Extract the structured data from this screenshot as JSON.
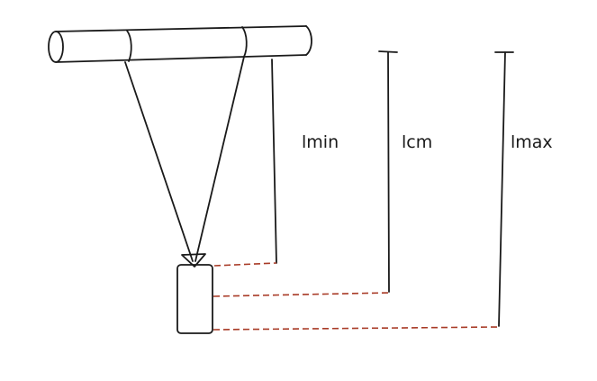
{
  "labels": {
    "lmin": "lmin",
    "lcm": "lcm",
    "lmax": "lmax"
  },
  "colors": {
    "ink": "#1a1a1a",
    "dashed": "#a83a26",
    "background": "#ffffff"
  }
}
